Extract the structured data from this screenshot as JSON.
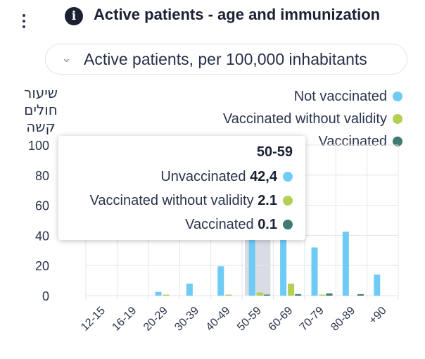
{
  "header": {
    "title": "Active patients - age and immunization",
    "info_icon": "i"
  },
  "selector": {
    "value": "Active patients, per 100,000 inhabitants",
    "icon": "chevron-down-icon"
  },
  "colors": {
    "not_vaccinated": "#6ecbf5",
    "partial": "#b5cf55",
    "vaccinated": "#3e7b73",
    "highlight": "#d9dde3",
    "grid": "#e3e6ea"
  },
  "chart_data": {
    "type": "bar",
    "ylabel": "שיעור חולים קשה",
    "ylim": [
      0,
      100
    ],
    "yticks": [
      0,
      20,
      40,
      60,
      80,
      100
    ],
    "categories": [
      "12-15",
      "16-19",
      "20-29",
      "30-39",
      "40-49",
      "50-59",
      "60-69",
      "70-79",
      "80-89",
      "+90"
    ],
    "series": [
      {
        "name": "Not vaccinated",
        "values": [
          0,
          0,
          2.5,
          8,
          19.5,
          42.4,
          42,
          32,
          42.5,
          14
        ]
      },
      {
        "name": "Vaccinated without validity",
        "values": [
          0,
          0,
          0.5,
          0,
          0.5,
          2.1,
          8,
          0.5,
          0,
          0
        ]
      },
      {
        "name": "Vaccinated",
        "values": [
          0,
          0,
          0,
          0,
          0,
          0.1,
          1,
          1.5,
          1,
          0
        ]
      }
    ],
    "highlighted_category": "50-59"
  },
  "tooltip": {
    "category": "50-59",
    "rows": [
      {
        "label": "Unvaccinated",
        "value": "42,4"
      },
      {
        "label": "Vaccinated without validity",
        "value": "2.1"
      },
      {
        "label": "Vaccinated",
        "value": "0.1"
      }
    ]
  }
}
